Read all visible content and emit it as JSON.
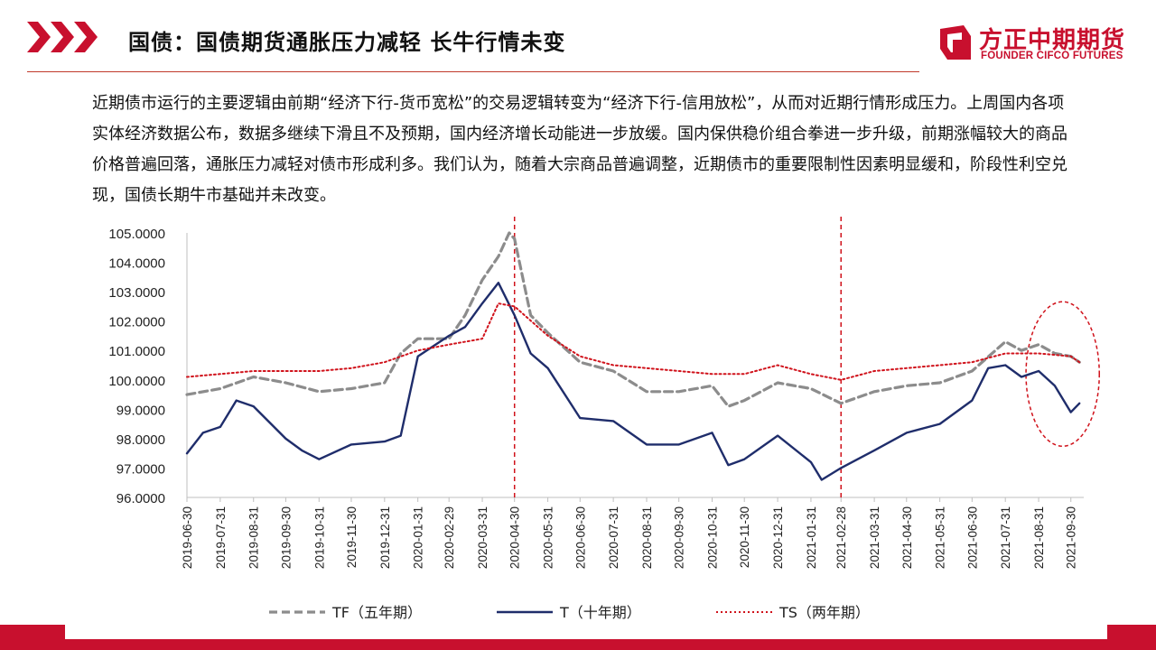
{
  "header": {
    "title": "国债：国债期货通胀压力减轻 长牛行情未变",
    "logo_cn": "方正中期期货",
    "logo_en": "FOUNDER CIFCO FUTURES"
  },
  "paragraph": "近期债市运行的主要逻辑由前期“经济下行-货币宽松”的交易逻辑转变为“经济下行-信用放松”，从而对近期行情形成压力。上周国内各项实体经济数据公布，数据多继续下滑且不及预期，国内经济增长动能进一步放缓。国内保供稳价组合拳进一步升级，前期涨幅较大的商品价格普遍回落，通胀压力减轻对债市形成利多。我们认为，随着大宗商品普遍调整，近期债市的重要限制性因素明显缓和，阶段性利空兑现，国债长期牛市基础并未改变。",
  "colors": {
    "accent": "#c8102e",
    "tf": "#8c8c8c",
    "t": "#1f2d6b",
    "ts": "#d0121b",
    "marker": "#d0121b"
  },
  "chart_data": {
    "type": "line",
    "title": "",
    "xlabel": "",
    "ylabel": "",
    "ylim": [
      96,
      105
    ],
    "y_ticks": [
      "105.0000",
      "104.0000",
      "103.0000",
      "102.0000",
      "101.0000",
      "100.0000",
      "99.0000",
      "98.0000",
      "97.0000",
      "96.0000"
    ],
    "x_ticks": [
      "2019-06-30",
      "2019-07-31",
      "2019-08-31",
      "2019-09-30",
      "2019-10-31",
      "2019-11-30",
      "2019-12-31",
      "2020-01-31",
      "2020-02-29",
      "2020-03-31",
      "2020-04-30",
      "2020-05-31",
      "2020-06-30",
      "2020-07-31",
      "2020-08-31",
      "2020-09-30",
      "2020-10-31",
      "2020-11-30",
      "2020-12-31",
      "2021-01-31",
      "2021-02-28",
      "2021-03-31",
      "2021-04-30",
      "2021-05-31",
      "2021-06-30",
      "2021-07-31",
      "2021-08-31",
      "2021-09-30"
    ],
    "x_index": [
      0,
      1,
      2,
      3,
      4,
      5,
      6,
      7,
      8,
      9,
      10,
      11,
      12,
      13,
      14,
      15,
      16,
      17,
      18,
      19,
      20,
      21,
      22,
      23,
      24,
      25,
      26,
      27,
      28,
      29,
      30,
      31,
      32,
      33,
      34,
      35,
      36,
      37,
      38,
      39,
      40,
      41,
      42,
      43,
      44,
      45,
      46,
      47,
      48,
      49,
      50,
      51,
      52,
      53,
      54,
      55,
      56,
      57,
      58,
      59,
      60,
      61,
      62,
      63,
      64,
      65,
      66,
      67,
      68,
      69,
      70,
      71,
      72,
      73,
      74,
      75,
      76,
      77,
      78,
      79,
      80,
      81,
      82,
      83,
      84,
      85,
      86,
      87,
      88,
      89,
      90,
      91,
      92,
      93,
      94,
      95,
      96,
      97,
      98,
      99,
      100,
      101,
      102,
      103,
      104,
      105,
      106,
      107,
      108,
      109,
      110,
      111,
      112,
      113,
      114,
      115,
      116,
      117,
      118,
      119,
      120,
      121,
      122,
      123,
      124,
      125,
      126,
      127,
      128,
      129,
      130,
      131,
      132,
      133,
      134,
      135,
      136,
      137,
      138,
      139,
      140,
      141,
      142,
      143,
      144,
      145,
      146,
      147,
      148,
      149,
      150,
      151,
      152,
      153,
      154,
      155,
      156,
      157,
      158,
      159,
      160,
      161,
      162,
      163,
      164,
      165,
      166,
      167,
      168,
      169,
      170,
      171,
      172,
      173,
      174,
      175,
      176,
      177,
      178,
      179,
      180,
      181,
      182,
      183,
      184,
      185,
      186,
      187,
      188,
      189,
      190,
      191,
      192,
      193,
      194,
      195,
      196,
      197,
      198,
      199,
      200,
      201,
      202,
      203,
      204,
      205,
      206,
      207,
      208,
      209,
      210,
      211,
      212,
      213,
      214,
      215,
      216,
      217,
      218,
      219,
      220,
      221,
      222,
      223,
      224,
      225,
      226,
      227,
      228,
      229,
      230,
      231,
      232,
      233,
      234,
      235,
      236,
      237,
      238,
      239,
      240,
      241,
      242,
      243,
      244,
      245,
      246,
      247,
      248,
      249,
      250,
      251,
      252,
      253,
      254,
      255,
      256,
      257,
      258,
      259,
      260,
      261,
      262,
      263,
      264,
      265,
      266,
      267,
      268,
      269,
      270,
      271,
      272,
      273,
      274,
      275,
      276,
      277,
      278,
      279,
      280,
      281,
      282,
      283,
      284,
      285,
      286,
      287,
      288,
      289,
      290,
      291,
      292,
      293,
      294,
      295,
      296,
      297,
      298,
      299,
      300,
      301,
      302,
      303,
      304,
      305,
      306,
      307,
      308,
      309,
      310,
      311,
      312,
      313,
      314,
      315,
      316,
      317,
      318,
      319,
      320,
      321,
      322,
      323,
      324,
      325,
      326,
      327,
      328,
      329,
      330,
      331,
      332,
      333,
      334,
      335,
      336,
      337,
      338,
      339,
      340,
      341,
      342,
      343,
      344,
      345,
      346,
      347,
      348,
      349,
      350,
      351,
      352,
      353,
      354,
      355,
      356,
      357,
      358,
      359,
      360,
      361,
      362,
      363,
      364,
      365,
      366,
      367,
      368,
      369,
      370,
      371,
      372,
      373,
      374,
      375,
      376,
      377,
      378,
      379,
      380,
      381,
      382,
      383,
      384,
      385,
      386,
      387,
      388,
      389,
      390,
      391,
      392,
      393,
      394,
      395,
      396,
      397,
      398,
      399,
      400,
      401,
      402,
      403,
      404,
      405,
      406,
      407,
      408,
      409,
      410,
      411,
      412,
      413,
      414,
      415,
      416,
      417,
      418,
      419,
      420,
      421,
      422,
      423,
      424,
      425,
      426,
      427,
      428,
      429,
      430,
      431,
      432,
      433,
      434,
      435,
      436,
      437,
      438,
      439,
      440,
      441,
      442,
      443,
      444,
      445,
      446,
      447,
      448,
      449,
      450,
      451,
      452,
      453,
      454,
      455,
      456,
      457,
      458,
      459,
      460,
      461,
      462,
      463,
      464,
      465,
      466,
      467,
      468,
      469,
      470,
      471,
      472,
      473,
      474,
      475,
      476,
      477,
      478,
      479,
      480,
      481,
      482,
      483,
      484,
      485,
      486,
      487,
      488,
      489,
      490,
      491,
      492,
      493,
      494,
      495,
      496,
      497,
      498,
      499,
      500,
      501,
      502,
      503,
      504,
      505,
      506,
      507,
      508,
      509,
      510,
      511,
      512,
      513,
      514,
      515,
      516,
      517,
      518,
      519,
      520,
      521,
      522,
      523,
      524,
      525,
      526,
      527,
      528,
      529,
      530,
      531,
      532,
      533,
      534,
      535,
      536,
      537,
      538,
      539,
      540,
      541,
      542,
      543,
      544,
      545,
      546,
      547,
      548,
      549,
      550,
      551,
      552,
      553,
      554,
      555,
      556,
      557,
      558,
      559,
      560,
      561,
      562,
      563,
      564,
      565,
      566,
      567,
      568,
      569,
      570,
      571,
      572,
      573,
      574,
      575,
      576,
      577,
      578,
      579,
      580,
      581,
      582,
      583,
      584,
      585,
      586,
      587,
      588,
      589,
      590,
      591,
      592,
      593,
      594,
      595,
      596,
      597,
      598,
      599,
      600,
      601,
      602,
      603,
      604,
      605,
      606,
      607,
      608,
      609,
      610,
      611,
      612,
      613,
      614,
      615,
      616,
      617,
      618,
      619,
      620,
      621,
      622,
      623,
      624,
      625,
      626,
      627,
      628,
      629,
      630,
      631,
      632,
      633,
      634,
      635,
      636,
      637,
      638,
      639,
      640,
      641,
      642,
      643,
      644,
      645,
      646,
      647,
      648,
      649,
      650,
      651,
      652,
      653,
      654,
      655,
      656,
      657,
      658,
      659,
      660,
      661,
      662,
      663,
      664,
      665,
      666,
      667,
      668,
      669,
      670,
      671,
      672,
      673,
      674,
      675,
      676,
      677,
      678,
      679,
      680,
      681,
      682,
      683,
      684,
      685,
      686,
      687,
      688,
      689,
      690,
      691,
      692,
      693,
      694,
      695,
      696,
      697,
      698,
      699,
      700,
      701,
      702,
      703,
      704,
      705,
      706,
      707,
      708,
      709,
      710,
      711,
      712,
      713,
      714,
      715,
      716,
      717,
      718,
      719,
      720,
      721,
      722,
      723,
      724,
      725,
      726,
      727,
      728,
      729,
      730,
      731,
      732,
      733,
      734,
      735,
      736,
      737,
      738,
      739,
      740,
      741,
      742,
      743,
      744,
      745,
      746,
      747,
      748,
      749,
      750,
      751,
      752,
      753,
      754,
      755,
      756,
      757,
      758,
      759,
      760,
      761,
      762,
      763,
      764,
      765,
      766,
      767,
      768,
      769,
      770,
      771,
      772,
      773,
      774,
      775,
      776,
      777,
      778,
      779,
      780,
      781,
      782,
      783,
      784,
      785,
      786,
      787,
      788,
      789,
      790,
      791,
      792,
      793,
      794,
      795,
      796,
      797,
      798,
      799,
      800,
      801,
      802,
      803,
      804,
      805,
      806,
      807,
      808,
      809,
      810,
      811,
      812,
      813,
      814,
      815,
      816,
      817,
      818,
      819,
      820,
      821,
      822,
      823,
      824,
      825,
      826,
      827,
      828,
      829,
      830,
      831,
      832,
      833,
      834,
      835,
      836,
      837,
      838,
      839,
      840,
      841,
      842,
      843,
      844,
      845,
      846,
      847,
      848,
      849,
      850,
      851,
      852,
      853,
      854,
      855,
      856,
      857,
      858,
      859,
      860,
      861,
      862,
      863,
      864,
      865,
      866,
      867,
      868,
      869,
      870,
      871,
      872,
      873,
      874,
      875,
      876,
      877,
      878,
      879,
      880,
      881,
      882,
      883,
      884,
      885,
      886,
      887,
      888,
      889,
      890,
      891,
      892,
      893,
      894,
      895,
      896,
      897,
      898,
      899,
      900,
      901,
      902,
      903,
      904,
      905,
      906,
      907,
      908,
      909,
      910,
      911,
      912,
      913,
      914,
      915,
      916,
      917,
      918,
      919,
      920,
      921,
      922,
      923,
      924,
      925,
      926,
      927,
      928,
      929,
      930,
      931,
      932,
      933,
      934,
      935,
      936,
      937,
      938,
      939,
      940,
      941,
      942,
      943,
      944,
      945,
      946,
      947,
      948,
      949,
      950,
      951,
      952,
      953,
      954,
      955,
      956,
      957,
      958,
      959,
      960,
      961,
      962,
      963,
      964,
      965,
      966,
      967,
      968,
      969,
      970,
      971,
      972,
      973,
      974,
      975,
      976,
      977,
      978,
      979,
      980,
      981,
      982,
      983,
      984,
      985,
      986,
      987,
      988,
      989,
      990,
      991,
      992,
      993,
      994,
      995,
      996,
      997,
      998,
      999
    ],
    "series": [
      {
        "name": "TF（五年期）",
        "style": "dashed",
        "color": "#8c8c8c",
        "x": [
          "2019-06-30",
          "2019-07-31",
          "2019-08-31",
          "2019-09-30",
          "2019-10-31",
          "2019-11-30",
          "2019-12-31",
          "2020-01-15",
          "2020-01-31",
          "2020-02-29",
          "2020-03-15",
          "2020-03-31",
          "2020-04-15",
          "2020-04-25",
          "2020-04-30",
          "2020-05-15",
          "2020-05-31",
          "2020-06-30",
          "2020-07-31",
          "2020-08-31",
          "2020-09-30",
          "2020-10-31",
          "2020-11-15",
          "2020-11-30",
          "2020-12-31",
          "2021-01-31",
          "2021-02-28",
          "2021-03-31",
          "2021-04-30",
          "2021-05-31",
          "2021-06-30",
          "2021-07-31",
          "2021-08-15",
          "2021-08-31",
          "2021-09-15",
          "2021-09-30",
          "2021-10-08"
        ],
        "values": [
          99.5,
          99.7,
          100.1,
          99.9,
          99.6,
          99.7,
          99.9,
          100.9,
          101.4,
          101.4,
          102.2,
          103.4,
          104.2,
          105.0,
          104.8,
          102.2,
          101.6,
          100.6,
          100.3,
          99.6,
          99.6,
          99.8,
          99.1,
          99.3,
          99.9,
          99.7,
          99.2,
          99.6,
          99.8,
          99.9,
          100.3,
          101.3,
          101.0,
          101.2,
          100.9,
          100.8,
          100.6
        ]
      },
      {
        "name": "T（十年期）",
        "style": "solid",
        "color": "#1f2d6b",
        "x": [
          "2019-06-30",
          "2019-07-15",
          "2019-07-31",
          "2019-08-15",
          "2019-08-31",
          "2019-09-30",
          "2019-10-15",
          "2019-10-31",
          "2019-11-30",
          "2019-12-31",
          "2020-01-15",
          "2020-01-31",
          "2020-02-29",
          "2020-03-15",
          "2020-03-31",
          "2020-04-15",
          "2020-04-30",
          "2020-05-15",
          "2020-05-31",
          "2020-06-30",
          "2020-07-31",
          "2020-08-31",
          "2020-09-30",
          "2020-10-31",
          "2020-11-15",
          "2020-11-30",
          "2020-12-31",
          "2021-01-31",
          "2021-02-10",
          "2021-02-28",
          "2021-03-31",
          "2021-04-30",
          "2021-05-31",
          "2021-06-30",
          "2021-07-15",
          "2021-07-31",
          "2021-08-15",
          "2021-08-31",
          "2021-09-15",
          "2021-09-30",
          "2021-10-08"
        ],
        "values": [
          97.5,
          98.2,
          98.4,
          99.3,
          99.1,
          98.0,
          97.6,
          97.3,
          97.8,
          97.9,
          98.1,
          100.8,
          101.5,
          101.8,
          102.6,
          103.3,
          102.2,
          100.9,
          100.4,
          98.7,
          98.6,
          97.8,
          97.8,
          98.2,
          97.1,
          97.3,
          98.1,
          97.2,
          96.6,
          97.0,
          97.6,
          98.2,
          98.5,
          99.3,
          100.4,
          100.5,
          100.1,
          100.3,
          99.8,
          98.9,
          99.2
        ]
      },
      {
        "name": "TS（两年期）",
        "style": "dotted",
        "color": "#d0121b",
        "x": [
          "2019-06-30",
          "2019-07-31",
          "2019-08-31",
          "2019-09-30",
          "2019-10-31",
          "2019-11-30",
          "2019-12-31",
          "2020-01-31",
          "2020-02-29",
          "2020-03-31",
          "2020-04-15",
          "2020-04-30",
          "2020-05-31",
          "2020-06-30",
          "2020-07-31",
          "2020-08-31",
          "2020-09-30",
          "2020-10-31",
          "2020-11-30",
          "2020-12-31",
          "2021-01-31",
          "2021-02-28",
          "2021-03-31",
          "2021-04-30",
          "2021-05-31",
          "2021-06-30",
          "2021-07-31",
          "2021-08-31",
          "2021-09-30",
          "2021-10-08"
        ],
        "values": [
          100.1,
          100.2,
          100.3,
          100.3,
          100.3,
          100.4,
          100.6,
          101.0,
          101.2,
          101.4,
          102.6,
          102.5,
          101.5,
          100.8,
          100.5,
          100.4,
          100.3,
          100.2,
          100.2,
          100.5,
          100.2,
          100.0,
          100.3,
          100.4,
          100.5,
          100.6,
          100.9,
          100.9,
          100.8,
          100.6
        ]
      }
    ],
    "markers": [
      "2020-04-30",
      "2021-02-28"
    ],
    "highlight": "2021-08-31 ~ 2021-10-08",
    "legend_position": "bottom",
    "grid": false
  }
}
